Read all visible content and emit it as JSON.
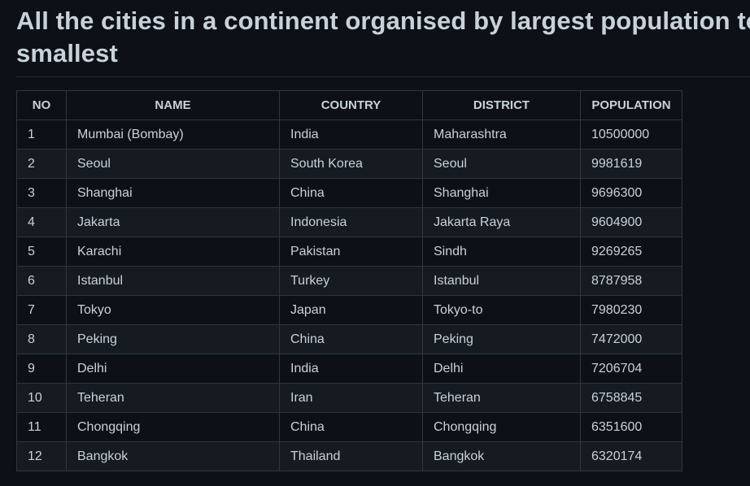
{
  "page": {
    "title": "All the cities in a continent organised by largest population to smallest"
  },
  "table": {
    "headers": {
      "no": "NO",
      "name": "NAME",
      "country": "COUNTRY",
      "district": "DISTRICT",
      "population": "POPULATION"
    },
    "rows": [
      {
        "no": "1",
        "name": "Mumbai (Bombay)",
        "country": "India",
        "district": "Maharashtra",
        "population": "10500000"
      },
      {
        "no": "2",
        "name": "Seoul",
        "country": "South Korea",
        "district": "Seoul",
        "population": "9981619"
      },
      {
        "no": "3",
        "name": "Shanghai",
        "country": "China",
        "district": "Shanghai",
        "population": "9696300"
      },
      {
        "no": "4",
        "name": "Jakarta",
        "country": "Indonesia",
        "district": "Jakarta Raya",
        "population": "9604900"
      },
      {
        "no": "5",
        "name": "Karachi",
        "country": "Pakistan",
        "district": "Sindh",
        "population": "9269265"
      },
      {
        "no": "6",
        "name": "Istanbul",
        "country": "Turkey",
        "district": "Istanbul",
        "population": "8787958"
      },
      {
        "no": "7",
        "name": "Tokyo",
        "country": "Japan",
        "district": "Tokyo-to",
        "population": "7980230"
      },
      {
        "no": "8",
        "name": "Peking",
        "country": "China",
        "district": "Peking",
        "population": "7472000"
      },
      {
        "no": "9",
        "name": "Delhi",
        "country": "India",
        "district": "Delhi",
        "population": "7206704"
      },
      {
        "no": "10",
        "name": "Teheran",
        "country": "Iran",
        "district": "Teheran",
        "population": "6758845"
      },
      {
        "no": "11",
        "name": "Chongqing",
        "country": "China",
        "district": "Chongqing",
        "population": "6351600"
      },
      {
        "no": "12",
        "name": "Bangkok",
        "country": "Thailand",
        "district": "Bangkok",
        "population": "6320174"
      }
    ]
  },
  "colors": {
    "background": "#0d1117",
    "row_alt": "#161b22",
    "border": "#30363d",
    "text": "#c9d1d9"
  }
}
